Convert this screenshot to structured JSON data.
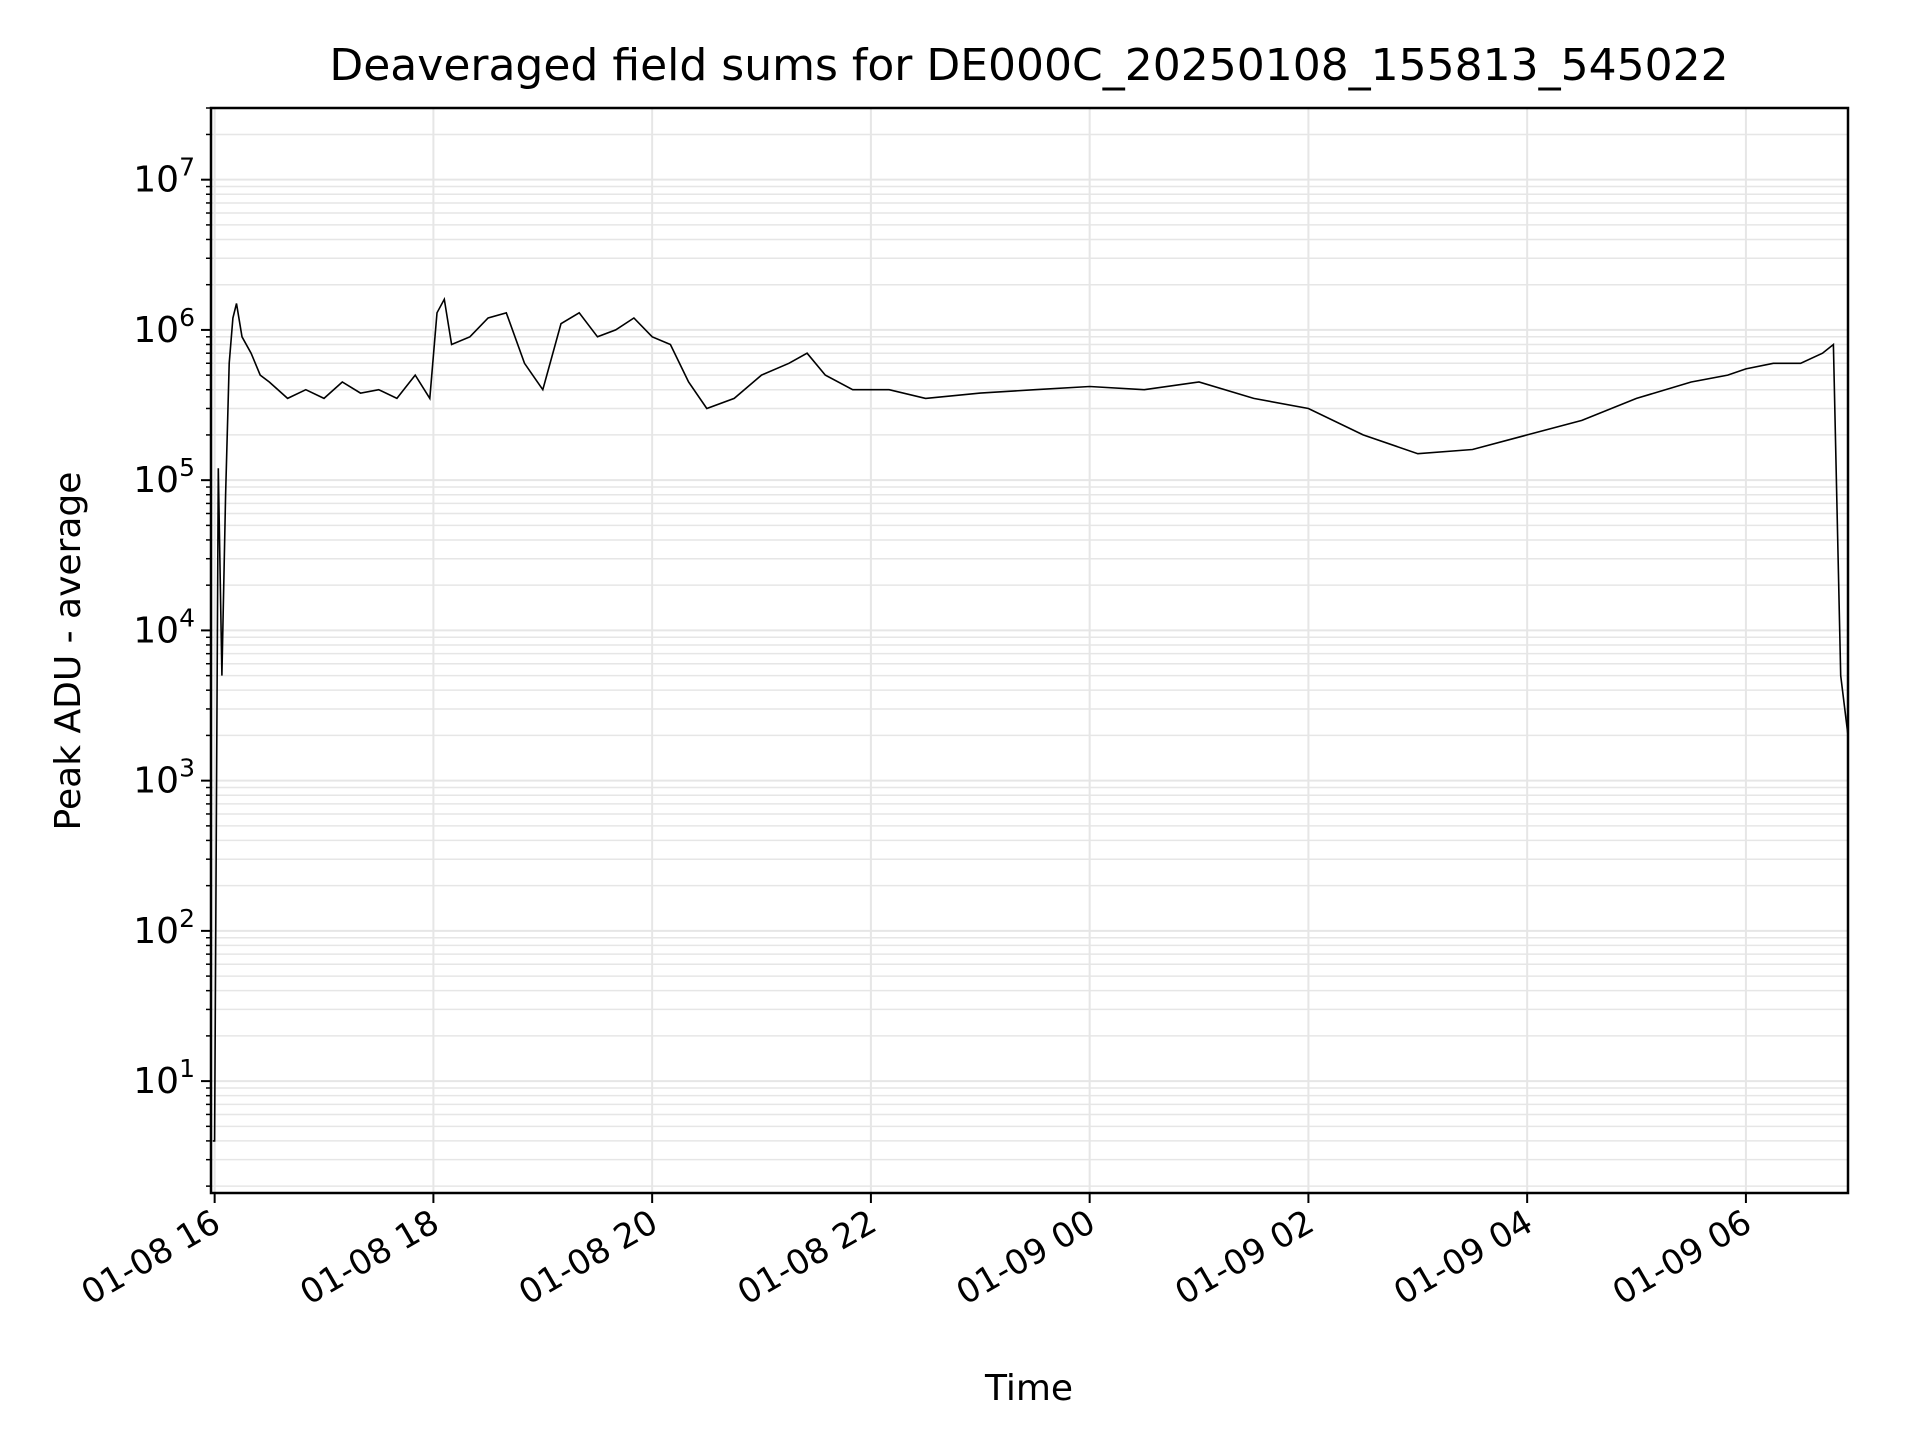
{
  "chart_data": {
    "type": "line",
    "title": "Deaveraged field sums for DE000C_20250108_155813_545022",
    "xlabel": "Time",
    "ylabel": "Peak ADU - average",
    "yscale": "log",
    "xlim": [
      "2025-01-08 15:58",
      "2025-01-09 06:56"
    ],
    "ylim": [
      1.8,
      30000000
    ],
    "x_ticks": [
      {
        "value": "2025-01-08 16:00",
        "label": "01-08 16"
      },
      {
        "value": "2025-01-08 18:00",
        "label": "01-08 18"
      },
      {
        "value": "2025-01-08 20:00",
        "label": "01-08 20"
      },
      {
        "value": "2025-01-08 22:00",
        "label": "01-08 22"
      },
      {
        "value": "2025-01-09 00:00",
        "label": "01-09 00"
      },
      {
        "value": "2025-01-09 02:00",
        "label": "01-09 02"
      },
      {
        "value": "2025-01-09 04:00",
        "label": "01-09 04"
      },
      {
        "value": "2025-01-09 06:00",
        "label": "01-09 06"
      }
    ],
    "y_ticks": [
      {
        "value": 10,
        "base": "10",
        "exp": "1"
      },
      {
        "value": 100,
        "base": "10",
        "exp": "2"
      },
      {
        "value": 1000,
        "base": "10",
        "exp": "3"
      },
      {
        "value": 10000,
        "base": "10",
        "exp": "4"
      },
      {
        "value": 100000,
        "base": "10",
        "exp": "5"
      },
      {
        "value": 1000000,
        "base": "10",
        "exp": "6"
      },
      {
        "value": 10000000,
        "base": "10",
        "exp": "7"
      }
    ],
    "grid": true,
    "grid_color": "#e6e6e6",
    "line_color": "#000000",
    "series": [
      {
        "x": [
          "2025-01-08 15:59",
          "2025-01-08 16:00",
          "2025-01-08 16:02",
          "2025-01-08 16:04",
          "2025-01-08 16:06",
          "2025-01-08 16:08",
          "2025-01-08 16:10",
          "2025-01-08 16:12",
          "2025-01-08 16:15",
          "2025-01-08 16:20",
          "2025-01-08 16:25",
          "2025-01-08 16:30",
          "2025-01-08 16:40",
          "2025-01-08 16:50",
          "2025-01-08 17:00",
          "2025-01-08 17:10",
          "2025-01-08 17:20",
          "2025-01-08 17:30",
          "2025-01-08 17:40",
          "2025-01-08 17:50",
          "2025-01-08 17:58",
          "2025-01-08 18:02",
          "2025-01-08 18:06",
          "2025-01-08 18:10",
          "2025-01-08 18:20",
          "2025-01-08 18:30",
          "2025-01-08 18:40",
          "2025-01-08 18:50",
          "2025-01-08 19:00",
          "2025-01-08 19:10",
          "2025-01-08 19:20",
          "2025-01-08 19:30",
          "2025-01-08 19:40",
          "2025-01-08 19:50",
          "2025-01-08 20:00",
          "2025-01-08 20:10",
          "2025-01-08 20:20",
          "2025-01-08 20:30",
          "2025-01-08 20:45",
          "2025-01-08 21:00",
          "2025-01-08 21:15",
          "2025-01-08 21:25",
          "2025-01-08 21:35",
          "2025-01-08 21:50",
          "2025-01-08 22:10",
          "2025-01-08 22:30",
          "2025-01-08 23:00",
          "2025-01-08 23:30",
          "2025-01-09 00:00",
          "2025-01-09 00:30",
          "2025-01-09 01:00",
          "2025-01-09 01:30",
          "2025-01-09 02:00",
          "2025-01-09 02:30",
          "2025-01-09 03:00",
          "2025-01-09 03:30",
          "2025-01-09 04:00",
          "2025-01-09 04:30",
          "2025-01-09 05:00",
          "2025-01-09 05:30",
          "2025-01-09 05:50",
          "2025-01-09 06:00",
          "2025-01-09 06:15",
          "2025-01-09 06:30",
          "2025-01-09 06:42",
          "2025-01-09 06:48",
          "2025-01-09 06:52",
          "2025-01-09 06:56"
        ],
        "y": [
          4,
          4,
          120000,
          5000,
          80000,
          600000,
          1200000,
          1500000,
          900000,
          700000,
          500000,
          450000,
          350000,
          400000,
          350000,
          450000,
          380000,
          400000,
          350000,
          500000,
          350000,
          1300000,
          1600000,
          800000,
          900000,
          1200000,
          1300000,
          600000,
          400000,
          1100000,
          1300000,
          900000,
          1000000,
          1200000,
          900000,
          800000,
          450000,
          300000,
          350000,
          500000,
          600000,
          700000,
          500000,
          400000,
          400000,
          350000,
          380000,
          400000,
          420000,
          400000,
          450000,
          350000,
          300000,
          200000,
          150000,
          160000,
          200000,
          250000,
          350000,
          450000,
          500000,
          550000,
          600000,
          600000,
          700000,
          800000,
          5000,
          2000
        ]
      }
    ]
  }
}
